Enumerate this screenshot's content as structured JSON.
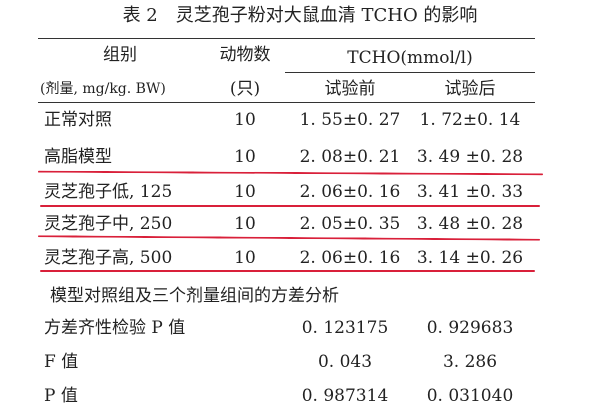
{
  "title": "表 2　灵芝孢子粉对大鼠血清 TCHO 的影响",
  "header": {
    "group": "组别",
    "dose": "(剂量, mg/kg. BW)",
    "animals": "动物数",
    "unit": "(只)",
    "measure": "TCHO(mmol/l)",
    "before": "试验前",
    "after": "试验后"
  },
  "rows": [
    [
      "正常对照",
      "10",
      "1. 55±0. 27",
      "1. 72±0. 14"
    ],
    [
      "高脂模型",
      "10",
      "2. 08±0. 21",
      "3. 49 ±0. 28"
    ],
    [
      "灵芝孢子低, 125",
      "10",
      "2. 06±0. 16",
      "3. 41 ±0. 33"
    ],
    [
      "灵芝孢子中, 250",
      "10",
      "2. 05±0. 35",
      "3. 48 ±0. 28"
    ],
    [
      "灵芝孢子高, 500",
      "10",
      "2. 06±0. 16",
      "3. 14 ±0. 26"
    ]
  ],
  "analysis": {
    "title": "模型对照组及三个剂量组间的方差分析",
    "rows": [
      [
        "方差齐性检验 P 值",
        "0. 123175",
        "0. 929683"
      ],
      [
        "F 值",
        "0. 043",
        "3. 286"
      ],
      [
        "P 值",
        "0. 987314",
        "0. 031040"
      ]
    ]
  }
}
